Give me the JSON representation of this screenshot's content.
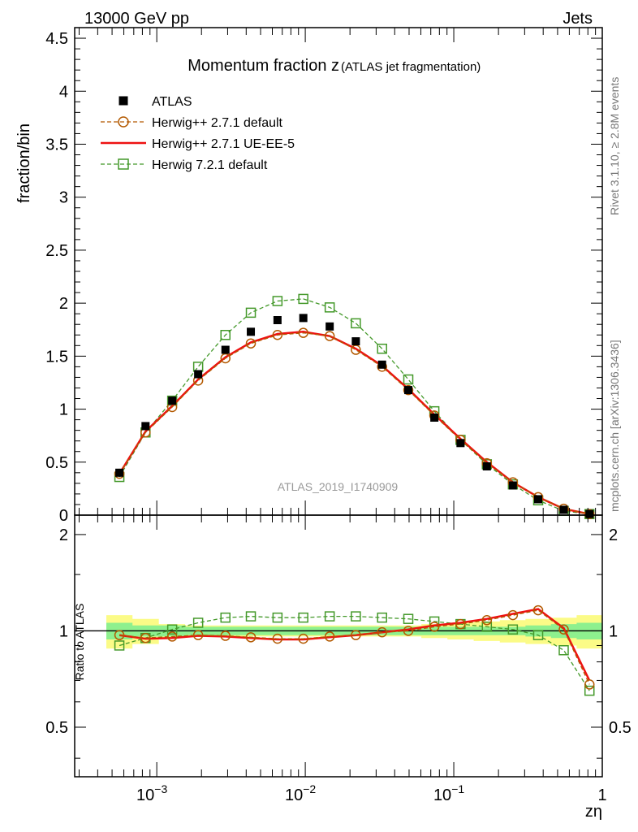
{
  "header": {
    "energy_label": "13000 GeV pp",
    "category_label": "Jets",
    "side_label_top": "Rivet 3.1.10, ≥ 2.8M events",
    "side_label_bottom": "mcplots.cern.ch [arXiv:1306.3436]"
  },
  "chart_data": [
    {
      "type": "scatter",
      "title": "Momentum fraction z",
      "title_suffix": "(ATLAS jet fragmentation)",
      "analysis_label": "ATLAS_2019_I1740909",
      "ylabel": "fraction/bin",
      "xlabel": "zη",
      "x_scale": "log",
      "xlim": [
        0.00028,
        1.0
      ],
      "ylim": [
        0,
        4.6
      ],
      "yticks": [
        0,
        0.5,
        1,
        1.5,
        2,
        2.5,
        3,
        3.5,
        4,
        4.5
      ],
      "ytick_labels": [
        "0",
        "0.5",
        "1",
        "1.5",
        "2",
        "2.5",
        "3",
        "3.5",
        "4",
        "4.5"
      ],
      "xtick_labels": [
        "10^-3",
        "10^-2",
        "10^-1",
        "1"
      ],
      "legend_position": "top-left",
      "x": [
        0.00056,
        0.00084,
        0.00127,
        0.0019,
        0.0029,
        0.0043,
        0.0065,
        0.0097,
        0.0146,
        0.0219,
        0.0329,
        0.0494,
        0.074,
        0.111,
        0.167,
        0.25,
        0.37,
        0.55,
        0.82
      ],
      "series": [
        {
          "name": "ATLAS",
          "color": "#000000",
          "marker": "filled-square",
          "values": [
            0.4,
            0.84,
            1.08,
            1.33,
            1.56,
            1.73,
            1.84,
            1.86,
            1.78,
            1.64,
            1.42,
            1.18,
            0.92,
            0.68,
            0.46,
            0.28,
            0.15,
            0.05,
            0.01
          ]
        },
        {
          "name": "Herwig++ 2.7.1 default",
          "color": "#b35900",
          "marker": "open-circle",
          "line": "dashed",
          "values": [
            0.39,
            0.78,
            1.02,
            1.27,
            1.48,
            1.62,
            1.7,
            1.72,
            1.69,
            1.56,
            1.4,
            1.18,
            0.94,
            0.71,
            0.49,
            0.31,
            0.17,
            0.06,
            0.01
          ]
        },
        {
          "name": "Herwig++ 2.7.1 UE-EE-5",
          "color": "#ee1111",
          "marker": "none",
          "line": "solid",
          "values": [
            0.39,
            0.79,
            1.03,
            1.28,
            1.49,
            1.63,
            1.71,
            1.73,
            1.69,
            1.57,
            1.41,
            1.19,
            0.95,
            0.72,
            0.5,
            0.31,
            0.17,
            0.06,
            0.01
          ]
        },
        {
          "name": "Herwig 7.2.1 default",
          "color": "#44992a",
          "marker": "open-square",
          "line": "dashed",
          "values": [
            0.36,
            0.78,
            1.08,
            1.4,
            1.7,
            1.91,
            2.02,
            2.04,
            1.96,
            1.81,
            1.57,
            1.28,
            0.98,
            0.71,
            0.48,
            0.29,
            0.14,
            0.04,
            0.01
          ]
        }
      ]
    },
    {
      "type": "scatter",
      "ylabel": "Ratio to ATLAS",
      "x_scale": "log",
      "xlim": [
        0.00028,
        1.0
      ],
      "ylim": [
        0.35,
        2.3
      ],
      "y_scale": "log",
      "yticks": [
        0.5,
        1,
        2
      ],
      "ytick_labels": [
        "0.5",
        "1",
        "2"
      ],
      "reference_line": 1,
      "x": [
        0.00056,
        0.00084,
        0.00127,
        0.0019,
        0.0029,
        0.0043,
        0.0065,
        0.0097,
        0.0146,
        0.0219,
        0.0329,
        0.0494,
        0.074,
        0.111,
        0.167,
        0.25,
        0.37,
        0.55,
        0.82
      ],
      "band_inner": [
        0.06,
        0.04,
        0.04,
        0.03,
        0.03,
        0.03,
        0.03,
        0.03,
        0.03,
        0.03,
        0.03,
        0.03,
        0.03,
        0.03,
        0.03,
        0.03,
        0.04,
        0.05,
        0.06
      ],
      "band_outer": [
        0.12,
        0.09,
        0.05,
        0.04,
        0.04,
        0.04,
        0.04,
        0.04,
        0.04,
        0.04,
        0.04,
        0.04,
        0.05,
        0.06,
        0.07,
        0.08,
        0.09,
        0.1,
        0.12
      ],
      "band_colors": {
        "inner": "#8ef08e",
        "outer": "#fbfb87"
      },
      "series": [
        {
          "name": "Herwig++ 2.7.1 default",
          "color": "#b35900",
          "marker": "open-circle",
          "line": "dashed",
          "values": [
            0.97,
            0.95,
            0.96,
            0.97,
            0.965,
            0.955,
            0.945,
            0.945,
            0.96,
            0.97,
            0.99,
            1.0,
            1.03,
            1.05,
            1.08,
            1.12,
            1.16,
            1.01,
            0.68
          ]
        },
        {
          "name": "Herwig++ 2.7.1 UE-EE-5",
          "color": "#ee1111",
          "marker": "none",
          "line": "solid",
          "values": [
            0.97,
            0.945,
            0.95,
            0.965,
            0.96,
            0.95,
            0.94,
            0.94,
            0.955,
            0.97,
            0.99,
            1.01,
            1.04,
            1.06,
            1.09,
            1.13,
            1.17,
            1.02,
            0.7
          ]
        },
        {
          "name": "Herwig 7.2.1 default",
          "color": "#44992a",
          "marker": "open-square",
          "line": "dashed",
          "values": [
            0.9,
            0.95,
            1.01,
            1.06,
            1.1,
            1.11,
            1.1,
            1.1,
            1.11,
            1.11,
            1.1,
            1.09,
            1.07,
            1.05,
            1.03,
            1.01,
            0.97,
            0.87,
            0.65
          ]
        }
      ]
    }
  ]
}
